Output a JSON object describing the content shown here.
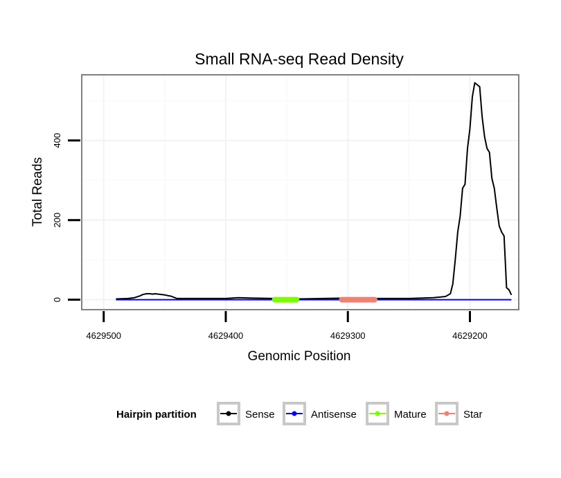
{
  "chart_data": {
    "type": "line",
    "title": "Small RNA-seq Read Density",
    "xlabel": "Genomic Position",
    "ylabel": "Total Reads",
    "xlim": [
      4629518,
      4629160
    ],
    "ylim": [
      -25,
      565
    ],
    "x_reversed": true,
    "x_ticks": [
      4629500,
      4629400,
      4629300,
      4629200
    ],
    "x_tick_labels": [
      "4629500",
      "4629400",
      "4629300",
      "4629200"
    ],
    "y_ticks": [
      0,
      200,
      400
    ],
    "y_tick_labels": [
      "0",
      "200",
      "400"
    ],
    "grid": true,
    "series": [
      {
        "name": "Sense",
        "color": "#000000",
        "x": [
          4629490,
          4629480,
          4629475,
          4629470,
          4629468,
          4629465,
          4629462,
          4629460,
          4629458,
          4629455,
          4629450,
          4629447,
          4629445,
          4629440,
          4629400,
          4629390,
          4629380,
          4629340,
          4629320,
          4629300,
          4629280,
          4629250,
          4629230,
          4629220,
          4629216,
          4629214,
          4629212,
          4629210,
          4629208,
          4629206,
          4629204,
          4629202,
          4629200,
          4629198,
          4629196,
          4629194,
          4629192,
          4629190,
          4629188,
          4629186,
          4629184,
          4629182,
          4629180,
          4629178,
          4629176,
          4629174,
          4629172,
          4629170,
          4629168,
          4629166
        ],
        "y": [
          2,
          3,
          5,
          10,
          13,
          15,
          15,
          14,
          15,
          14,
          12,
          10,
          9,
          3,
          3,
          5,
          4,
          2,
          3,
          4,
          3,
          3,
          5,
          8,
          15,
          40,
          100,
          170,
          210,
          280,
          290,
          380,
          430,
          510,
          545,
          540,
          535,
          460,
          410,
          380,
          370,
          305,
          280,
          230,
          185,
          170,
          160,
          30,
          25,
          12
        ]
      },
      {
        "name": "Antisense",
        "color": "#0000ff",
        "x": [
          4629490,
          4629166
        ],
        "y": [
          0,
          0
        ]
      },
      {
        "name": "Mature",
        "color": "#7cfc00",
        "x": [
          4629360,
          4629342
        ],
        "y": [
          0,
          0
        ]
      },
      {
        "name": "Star",
        "color": "#f08070",
        "x": [
          4629305,
          4629278
        ],
        "y": [
          0,
          0
        ]
      }
    ],
    "legend": {
      "title": "Hairpin partition",
      "position": "bottom",
      "entries": [
        {
          "name": "Sense",
          "color": "#000000"
        },
        {
          "name": "Antisense",
          "color": "#0000ff"
        },
        {
          "name": "Mature",
          "color": "#7cfc00"
        },
        {
          "name": "Star",
          "color": "#f08070"
        }
      ]
    }
  }
}
